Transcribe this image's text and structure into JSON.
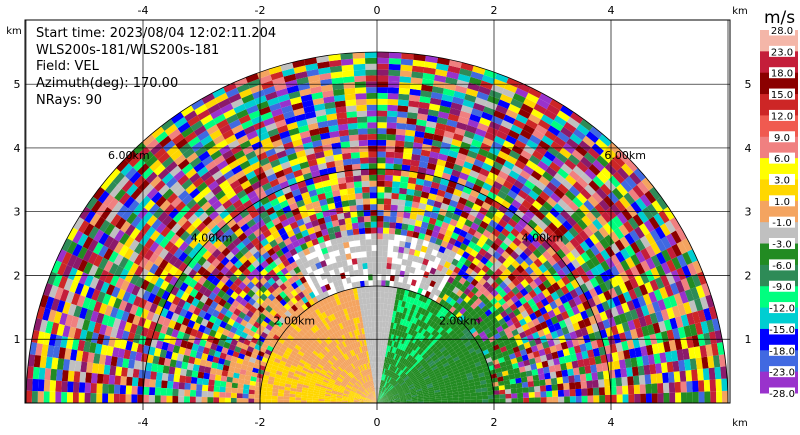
{
  "info": {
    "start_time": "Start time: 2023/08/04 12:02:11.204",
    "instrument": "WLS200s-181/WLS200s-181",
    "field": "Field: VEL",
    "azimuth": "Azimuth(deg): 170.00",
    "nrays": "NRays: 90"
  },
  "chart_data": {
    "type": "heatmap",
    "projection": "polar-sector (RHI half-disk)",
    "axis_unit": "km",
    "x_ticks": [
      -4,
      -2,
      0,
      2,
      4
    ],
    "y_ticks": [
      1,
      2,
      3,
      4,
      5
    ],
    "xlim": [
      -6,
      6
    ],
    "ylim": [
      0,
      6
    ],
    "max_range_km": 6,
    "range_rings": [
      {
        "radius_km": 2,
        "label": "2.00km"
      },
      {
        "radius_km": 4,
        "label": "4.00km"
      },
      {
        "radius_km": 6,
        "label": "6.00km"
      }
    ],
    "grid": true,
    "colorbar": {
      "unit": "m/s",
      "placement": "right",
      "tick_labels": [
        "28.0",
        "23.0",
        "18.0",
        "15.0",
        "12.0",
        "9.0",
        "6.0",
        "3.0",
        "1.0",
        "-1.0",
        "-3.0",
        "-6.0",
        "-9.0",
        "-12.0",
        "-15.0",
        "-18.0",
        "-23.0",
        "-28.0"
      ],
      "colors": [
        "#f4b6a8",
        "#c41e3a",
        "#8b0000",
        "#cd2626",
        "#f05a50",
        "#f08080",
        "#ffff00",
        "#ffd700",
        "#f4a460",
        "#c0c0c0",
        "#228b22",
        "#2e8b57",
        "#00ff7f",
        "#00ced1",
        "#0000ff",
        "#4169e1",
        "#9932cc",
        "#8b1a6b"
      ]
    },
    "near_field": {
      "description_regions": [
        {
          "azimuth_deg": [
            0,
            45
          ],
          "range_km": [
            0,
            2
          ],
          "velocity_ms": -3.0
        },
        {
          "azimuth_deg": [
            45,
            80
          ],
          "range_km": [
            0,
            2
          ],
          "velocity_ms": -6.0
        },
        {
          "azimuth_deg": [
            80,
            100
          ],
          "range_km": [
            0,
            2
          ],
          "velocity_ms": 0.0
        },
        {
          "azimuth_deg": [
            100,
            155
          ],
          "range_km": [
            0,
            2
          ],
          "velocity_ms": 3.0
        },
        {
          "azimuth_deg": [
            155,
            180
          ],
          "range_km": [
            0,
            2
          ],
          "velocity_ms": 6.0
        }
      ]
    }
  }
}
